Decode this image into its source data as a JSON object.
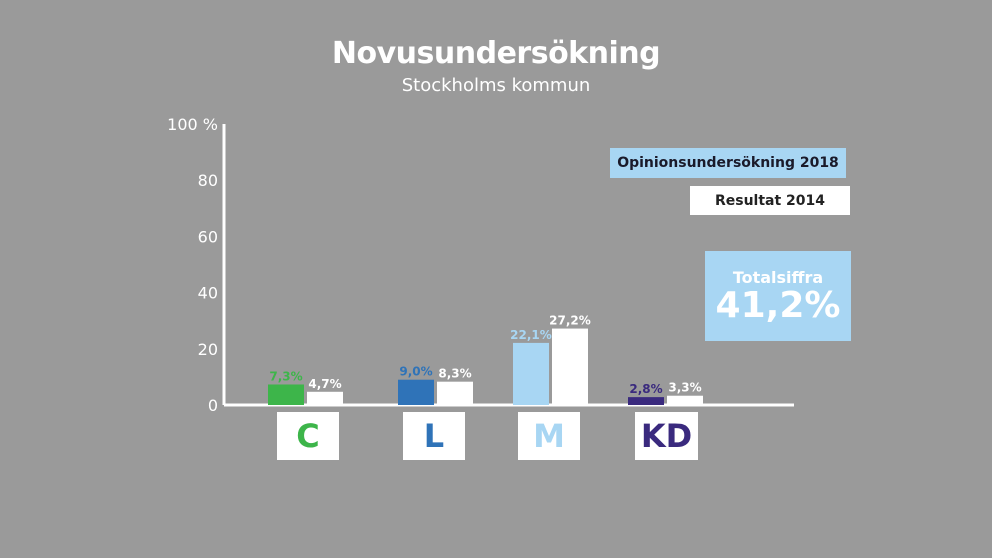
{
  "header": {
    "title": "Novusundersökning",
    "subtitle": "Stockholms kommun"
  },
  "legend": {
    "poll_label": "Opinionsundersökning 2018",
    "result_label": "Resultat 2014"
  },
  "total": {
    "label": "Totalsiffra",
    "value": "41,2%"
  },
  "chart_data": {
    "type": "bar",
    "title": "Novusundersökning",
    "subtitle": "Stockholms kommun",
    "categories": [
      "C",
      "L",
      "M",
      "KD"
    ],
    "series": [
      {
        "name": "Opinionsundersökning 2018",
        "values": [
          7.3,
          9.0,
          22.1,
          2.8
        ],
        "labels": [
          "7,3%",
          "9,0%",
          "22,1%",
          "2,8%"
        ]
      },
      {
        "name": "Resultat 2014",
        "values": [
          4.7,
          8.3,
          27.2,
          3.3
        ],
        "labels": [
          "4,7%",
          "8,3%",
          "27,2%",
          "3,3%"
        ]
      }
    ],
    "category_colors": [
      "#3db54a",
      "#2f73b8",
      "#a8d6f3",
      "#3a2a7e"
    ],
    "ylim": [
      0,
      100
    ],
    "yticks": [
      0,
      20,
      40,
      60,
      80,
      100
    ],
    "ytick_labels": [
      "0",
      "20",
      "40",
      "60",
      "80",
      "100 %"
    ],
    "grid": false,
    "legend_position": "top-right"
  }
}
